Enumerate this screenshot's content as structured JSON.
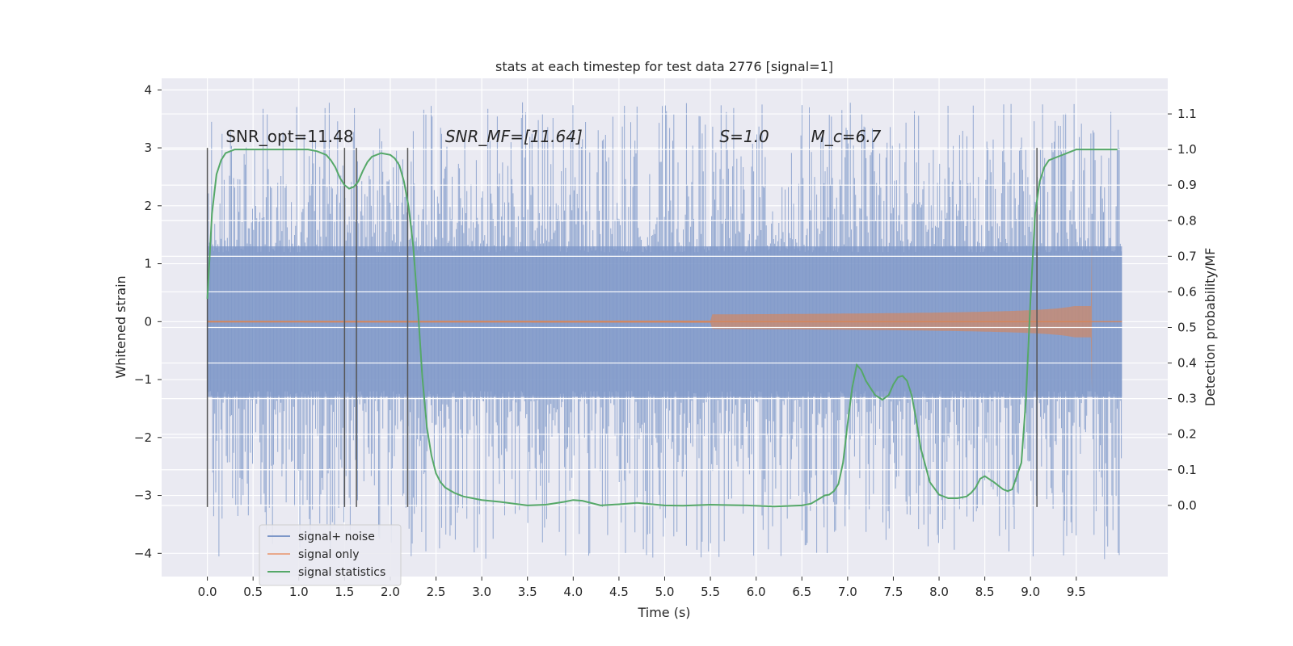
{
  "chart_data": {
    "type": "line",
    "title": "stats at each timestep for test data 2776 [signal=1]",
    "xlabel": "Time (s)",
    "ylabel": "Whitened strain",
    "y2label": "Detection probability/MF",
    "xlim": [
      -0.5,
      10.5
    ],
    "ylim": [
      -4.4,
      4.2
    ],
    "y2lim": [
      -0.2,
      1.2
    ],
    "xticks": [
      "0.0",
      "0.5",
      "1.0",
      "1.5",
      "2.0",
      "2.5",
      "3.0",
      "3.5",
      "4.0",
      "4.5",
      "5.0",
      "5.5",
      "6.0",
      "6.5",
      "7.0",
      "7.5",
      "8.0",
      "8.5",
      "9.0",
      "9.5"
    ],
    "yticks": [
      "−4",
      "−3",
      "−2",
      "−1",
      "0",
      "1",
      "2",
      "3",
      "4"
    ],
    "y2ticks": [
      "0.0",
      "0.1",
      "0.2",
      "0.3",
      "0.4",
      "0.5",
      "0.6",
      "0.7",
      "0.8",
      "0.9",
      "1.0",
      "1.1"
    ],
    "grid": true,
    "legend_position": "lower-left",
    "annotations": [
      {
        "text": "SNR_opt=11.48",
        "x": 0.2,
        "y": 3.1
      },
      {
        "text": "SNR_MF=[11.64]",
        "x": 2.6,
        "y": 3.1
      },
      {
        "text": "S=1.0",
        "x": 5.6,
        "y": 3.1
      },
      {
        "text": "M_c=6.7",
        "x": 6.6,
        "y": 3.1
      }
    ],
    "vlines_x": [
      0.0,
      1.5,
      1.63,
      2.19,
      9.07
    ],
    "vlines_ylim": [
      -3.2,
      3.0
    ],
    "series": [
      {
        "name": "signal+ noise",
        "color": "#7d97c8",
        "axis": "left",
        "noise_band": {
          "x_start": 0.0,
          "x_end": 10.0,
          "dense_min": -1.3,
          "dense_max": 1.3,
          "peak_max": 3.8,
          "peak_min": -4.1
        }
      },
      {
        "name": "signal only",
        "color": "#dd8452",
        "axis": "left",
        "chirp": {
          "merger_x": 9.67,
          "onset_x": 5.5,
          "peak_amplitude": 1.45,
          "end_x": 10.0
        }
      },
      {
        "name": "signal statistics",
        "color": "#55a868",
        "axis": "right",
        "x": [
          0.0,
          0.05,
          0.1,
          0.15,
          0.2,
          0.3,
          0.4,
          0.6,
          0.8,
          1.0,
          1.1,
          1.2,
          1.3,
          1.35,
          1.4,
          1.45,
          1.5,
          1.55,
          1.6,
          1.65,
          1.7,
          1.75,
          1.8,
          1.9,
          2.0,
          2.05,
          2.1,
          2.15,
          2.2,
          2.25,
          2.3,
          2.35,
          2.4,
          2.45,
          2.5,
          2.55,
          2.6,
          2.7,
          2.8,
          3.0,
          3.2,
          3.5,
          3.7,
          3.9,
          4.0,
          4.1,
          4.3,
          4.5,
          4.7,
          5.0,
          5.2,
          5.5,
          5.9,
          6.2,
          6.5,
          6.6,
          6.7,
          6.75,
          6.8,
          6.85,
          6.9,
          6.95,
          7.0,
          7.05,
          7.1,
          7.15,
          7.2,
          7.3,
          7.38,
          7.45,
          7.5,
          7.55,
          7.6,
          7.65,
          7.7,
          7.75,
          7.8,
          7.9,
          8.0,
          8.1,
          8.2,
          8.3,
          8.35,
          8.4,
          8.45,
          8.5,
          8.6,
          8.7,
          8.75,
          8.8,
          8.9,
          8.95,
          9.0,
          9.05,
          9.1,
          9.15,
          9.2,
          9.3,
          9.4,
          9.5,
          9.6,
          9.7,
          9.8,
          9.95
        ],
        "y": [
          0.58,
          0.82,
          0.93,
          0.97,
          0.99,
          1.0,
          1.0,
          1.0,
          1.0,
          1.0,
          1.0,
          0.995,
          0.985,
          0.97,
          0.95,
          0.92,
          0.9,
          0.89,
          0.895,
          0.91,
          0.94,
          0.965,
          0.98,
          0.99,
          0.985,
          0.975,
          0.955,
          0.91,
          0.84,
          0.73,
          0.56,
          0.36,
          0.22,
          0.14,
          0.09,
          0.065,
          0.05,
          0.035,
          0.025,
          0.015,
          0.01,
          0.0,
          0.002,
          0.01,
          0.015,
          0.013,
          0.0,
          0.003,
          0.007,
          0.0,
          -0.001,
          0.002,
          0.0,
          -0.003,
          0.0,
          0.005,
          0.02,
          0.028,
          0.03,
          0.04,
          0.06,
          0.12,
          0.23,
          0.33,
          0.395,
          0.38,
          0.35,
          0.31,
          0.297,
          0.31,
          0.34,
          0.36,
          0.364,
          0.35,
          0.31,
          0.24,
          0.16,
          0.065,
          0.03,
          0.02,
          0.02,
          0.025,
          0.035,
          0.05,
          0.075,
          0.082,
          0.065,
          0.045,
          0.04,
          0.045,
          0.12,
          0.3,
          0.58,
          0.82,
          0.91,
          0.95,
          0.97,
          0.98,
          0.99,
          1.0,
          1.0,
          1.0,
          1.0,
          1.0
        ]
      }
    ]
  }
}
